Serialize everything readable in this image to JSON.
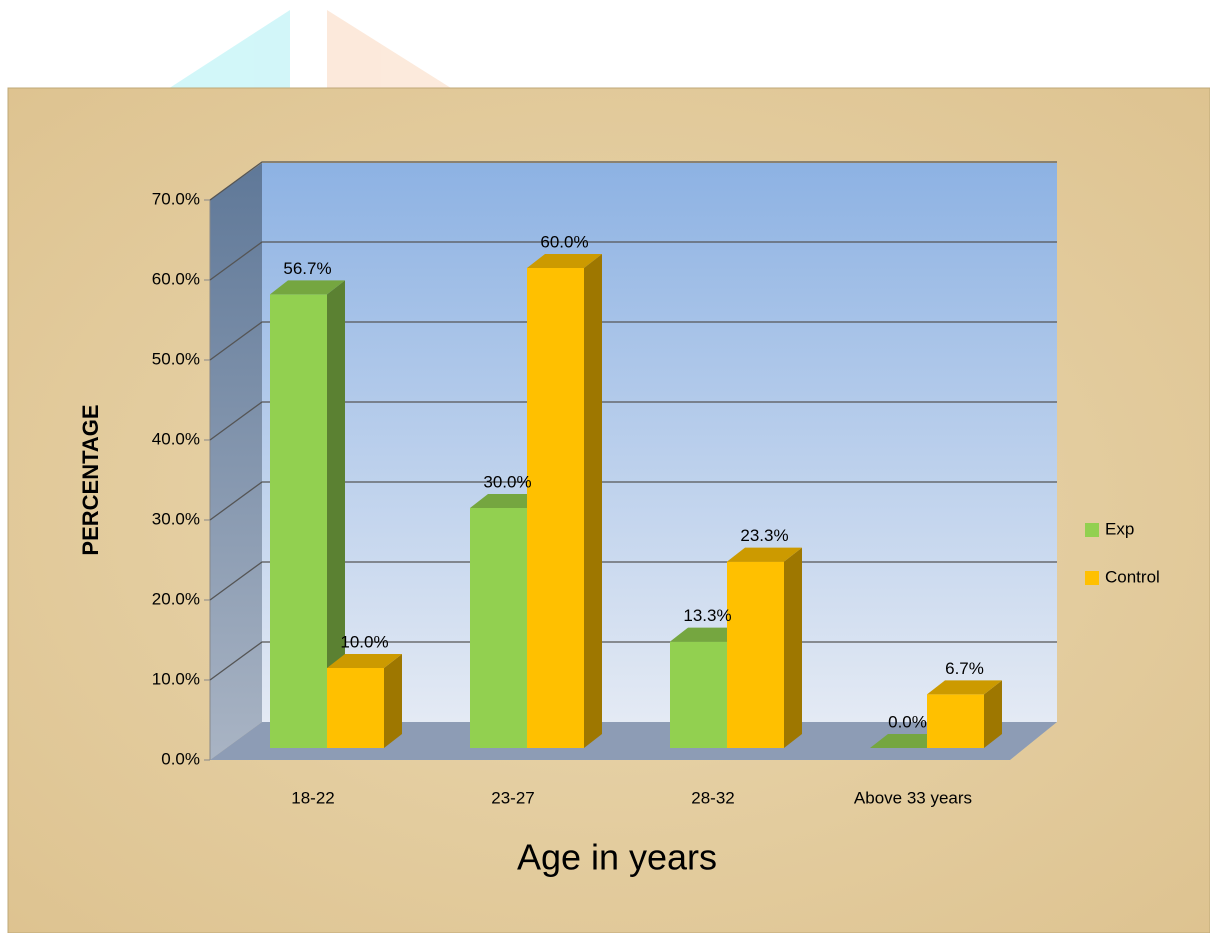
{
  "chart_data": {
    "type": "bar3d",
    "x_label": "Age in years",
    "y_label": "PERCENTAGE",
    "categories": [
      "18-22",
      "23-27",
      "28-32",
      "Above 33 years"
    ],
    "series": [
      {
        "name": "Exp",
        "color": "#92d050",
        "values": [
          56.7,
          30.0,
          13.3,
          0.0
        ],
        "value_labels": [
          "56.7%",
          "30.0%",
          "13.3%",
          "0.0%"
        ]
      },
      {
        "name": "Control",
        "color": "#ffc000",
        "values": [
          10.0,
          60.0,
          23.3,
          6.7
        ],
        "value_labels": [
          "10.0%",
          "60.0%",
          "23.3%",
          "6.7%"
        ]
      }
    ],
    "ylim": [
      0,
      70
    ],
    "yticks": [
      {
        "value": 0,
        "label": "0.0%"
      },
      {
        "value": 10,
        "label": "10.0%"
      },
      {
        "value": 20,
        "label": "20.0%"
      },
      {
        "value": 30,
        "label": "30.0%"
      },
      {
        "value": 40,
        "label": "40.0%"
      },
      {
        "value": 50,
        "label": "50.0%"
      },
      {
        "value": 60,
        "label": "60.0%"
      },
      {
        "value": 70,
        "label": "70.0%"
      }
    ],
    "grid": true,
    "legend": "right"
  }
}
